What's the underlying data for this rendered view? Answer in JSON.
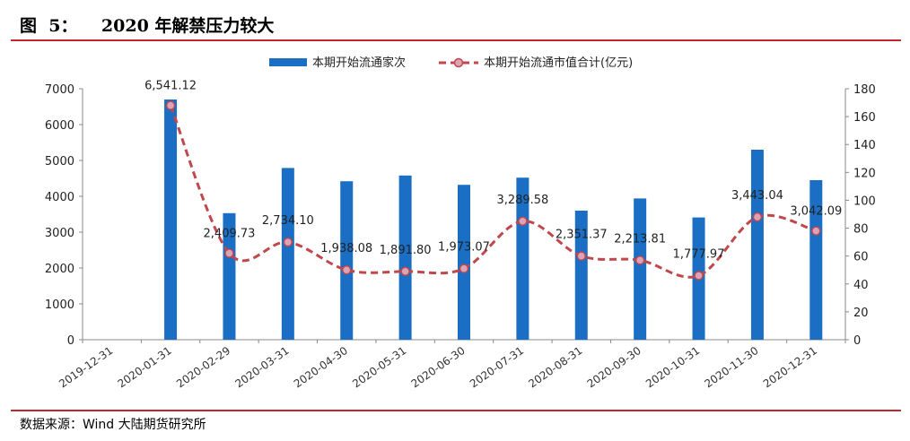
{
  "header": {
    "title": "图  5：    2020 年解禁压力较大"
  },
  "footer": {
    "source": "数据来源：Wind   大陆期货研究所"
  },
  "colors": {
    "bar": "#1a6fc4",
    "line": "#c0474b",
    "marker": "#d9a3b8",
    "rule": "#c0262d"
  },
  "chart_data": {
    "type": "bar",
    "categories": [
      "2019-12-31",
      "2020-01-31",
      "2020-02-29",
      "2020-03-31",
      "2020-04-30",
      "2020-05-31",
      "2020-06-30",
      "2020-07-31",
      "2020-08-31",
      "2020-09-30",
      "2020-10-31",
      "2020-11-30",
      "2020-12-31"
    ],
    "series": [
      {
        "name": "本期开始流通家次",
        "type": "bar",
        "axis": "left",
        "values": [
          null,
          6700,
          3530,
          4790,
          4420,
          4580,
          4320,
          4520,
          3600,
          3940,
          3410,
          5300,
          4450
        ]
      },
      {
        "name": "本期开始流通市值合计(亿元)",
        "type": "line",
        "axis": "right",
        "style": "dashed",
        "values": [
          null,
          168,
          62,
          70,
          50,
          49,
          51,
          85,
          60,
          57,
          46,
          88,
          78
        ],
        "labels": [
          "",
          "6,541.12",
          "2,409.73",
          "2,734.10",
          "1,938.08",
          "1,891.80",
          "1,973.07",
          "3,289.58",
          "2,351.37",
          "2,213.81",
          "1,777.97",
          "3,443.04",
          "3,042.09"
        ]
      }
    ],
    "ylim_left": [
      0,
      7000
    ],
    "ylim_right": [
      0,
      180
    ],
    "yticks_left": [
      "0",
      "1000",
      "2000",
      "3000",
      "4000",
      "5000",
      "6000",
      "7000"
    ],
    "yticks_right": [
      "0",
      "20",
      "40",
      "60",
      "80",
      "100",
      "120",
      "140",
      "160",
      "180"
    ],
    "legend_position": "top-center",
    "grid": false
  }
}
